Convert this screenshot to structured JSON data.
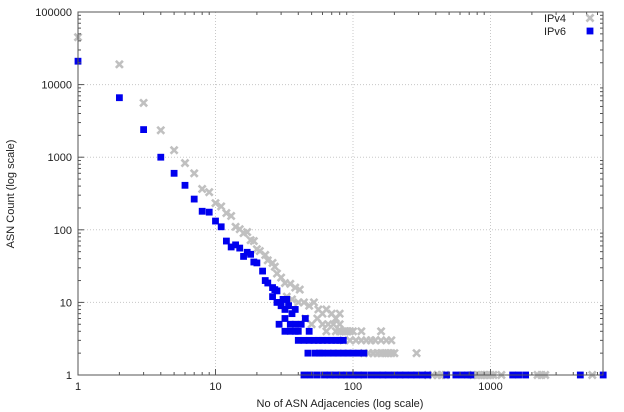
{
  "chart_data": {
    "type": "scatter",
    "title": "",
    "xlabel": "No of ASN Adjacencies (log scale)",
    "ylabel": "ASN Count (log scale)",
    "xscale": "log",
    "yscale": "log",
    "xlim": [
      1,
      6600
    ],
    "ylim": [
      1,
      100000
    ],
    "x_ticks": [
      "1",
      "10",
      "100",
      "1000"
    ],
    "y_ticks": [
      "1",
      "10",
      "100",
      "1000",
      "10000",
      "100000"
    ],
    "grid": "dotted major gridlines",
    "legend_position": "top-right",
    "legend": [
      {
        "name": "IPv4",
        "color": "#c0c0c0",
        "marker": "x"
      },
      {
        "name": "IPv6",
        "color": "#0000ee",
        "marker": "square"
      }
    ],
    "series": [
      {
        "name": "IPv4",
        "color": "#c0c0c0",
        "marker": "x",
        "points": [
          [
            1,
            45000
          ],
          [
            2,
            19000
          ],
          [
            3,
            5600
          ],
          [
            4,
            2350
          ],
          [
            5,
            1250
          ],
          [
            6,
            830
          ],
          [
            7,
            600
          ],
          [
            8,
            365
          ],
          [
            9,
            330
          ],
          [
            10,
            233
          ],
          [
            11,
            210
          ],
          [
            12,
            170
          ],
          [
            13,
            155
          ],
          [
            14,
            110
          ],
          [
            15,
            102
          ],
          [
            16,
            90
          ],
          [
            17,
            93
          ],
          [
            18,
            72
          ],
          [
            19,
            70
          ],
          [
            20,
            54
          ],
          [
            21,
            51
          ],
          [
            23,
            45
          ],
          [
            24,
            38
          ],
          [
            26,
            35
          ],
          [
            27,
            31
          ],
          [
            28,
            25
          ],
          [
            30,
            22
          ],
          [
            32,
            18.5
          ],
          [
            35,
            18
          ],
          [
            38,
            16
          ],
          [
            41,
            15
          ],
          [
            33,
            12
          ],
          [
            36,
            11
          ],
          [
            40,
            10
          ],
          [
            44,
            10
          ],
          [
            48,
            9
          ],
          [
            52,
            10
          ],
          [
            56,
            8
          ],
          [
            60,
            7
          ],
          [
            64,
            8
          ],
          [
            70,
            7
          ],
          [
            75,
            6
          ],
          [
            80,
            7
          ],
          [
            45,
            6
          ],
          [
            50,
            5
          ],
          [
            55,
            6
          ],
          [
            60,
            5
          ],
          [
            66,
            5
          ],
          [
            72,
            5
          ],
          [
            80,
            5
          ],
          [
            88,
            4
          ],
          [
            64,
            4
          ],
          [
            75,
            4
          ],
          [
            80,
            4
          ],
          [
            85,
            4
          ],
          [
            90,
            4
          ],
          [
            95,
            4
          ],
          [
            100,
            4
          ],
          [
            115,
            4
          ],
          [
            160,
            4
          ],
          [
            85,
            3
          ],
          [
            95,
            3
          ],
          [
            105,
            3
          ],
          [
            115,
            3
          ],
          [
            125,
            3
          ],
          [
            135,
            3
          ],
          [
            145,
            3
          ],
          [
            160,
            3
          ],
          [
            175,
            3
          ],
          [
            190,
            3
          ],
          [
            120,
            2
          ],
          [
            130,
            2
          ],
          [
            140,
            2
          ],
          [
            150,
            2
          ],
          [
            160,
            2
          ],
          [
            170,
            2
          ],
          [
            180,
            2
          ],
          [
            190,
            2
          ],
          [
            200,
            2
          ],
          [
            290,
            2
          ],
          [
            350,
            1
          ],
          [
            380,
            1
          ],
          [
            410,
            1
          ],
          [
            440,
            1
          ],
          [
            470,
            1
          ],
          [
            750,
            1
          ],
          [
            800,
            1
          ],
          [
            850,
            1
          ],
          [
            900,
            1
          ],
          [
            950,
            1
          ],
          [
            1000,
            1
          ],
          [
            1050,
            1
          ],
          [
            1200,
            1
          ],
          [
            2200,
            1
          ],
          [
            2350,
            1
          ],
          [
            2500,
            1
          ],
          [
            5500,
            1
          ]
        ]
      },
      {
        "name": "IPv6",
        "color": "#0000ee",
        "marker": "square",
        "points": [
          [
            1,
            21000
          ],
          [
            2,
            6600
          ],
          [
            3,
            2400
          ],
          [
            4,
            1000
          ],
          [
            5,
            600
          ],
          [
            6,
            410
          ],
          [
            7,
            265
          ],
          [
            8,
            180
          ],
          [
            9,
            175
          ],
          [
            10,
            132
          ],
          [
            11,
            110
          ],
          [
            12,
            70
          ],
          [
            13,
            58
          ],
          [
            14,
            62
          ],
          [
            15,
            56
          ],
          [
            16,
            43
          ],
          [
            17,
            49
          ],
          [
            18,
            46
          ],
          [
            19,
            36
          ],
          [
            20,
            35
          ],
          [
            22,
            27
          ],
          [
            23,
            20
          ],
          [
            24,
            18.5
          ],
          [
            26,
            16
          ],
          [
            27,
            15
          ],
          [
            28,
            14.4
          ],
          [
            31,
            11
          ],
          [
            33,
            11
          ],
          [
            26,
            12
          ],
          [
            28,
            10
          ],
          [
            30,
            9
          ],
          [
            32,
            8
          ],
          [
            34,
            9
          ],
          [
            36,
            7
          ],
          [
            38,
            8
          ],
          [
            29,
            5
          ],
          [
            32,
            6
          ],
          [
            35,
            5
          ],
          [
            38,
            5
          ],
          [
            42,
            5
          ],
          [
            45,
            6
          ],
          [
            32,
            4
          ],
          [
            35,
            4
          ],
          [
            38,
            4
          ],
          [
            40,
            4
          ],
          [
            48,
            4
          ],
          [
            40,
            3
          ],
          [
            44,
            3
          ],
          [
            48,
            3
          ],
          [
            52,
            3
          ],
          [
            56,
            3
          ],
          [
            60,
            3
          ],
          [
            65,
            3
          ],
          [
            70,
            3
          ],
          [
            75,
            3
          ],
          [
            80,
            3
          ],
          [
            85,
            3
          ],
          [
            47,
            2
          ],
          [
            53,
            2
          ],
          [
            57,
            2
          ],
          [
            60,
            2
          ],
          [
            66,
            2
          ],
          [
            72,
            2
          ],
          [
            78,
            2
          ],
          [
            85,
            2
          ],
          [
            92,
            2
          ],
          [
            100,
            2
          ],
          [
            110,
            2
          ],
          [
            120,
            2
          ],
          [
            44,
            1
          ],
          [
            49,
            1
          ],
          [
            55,
            1
          ],
          [
            62,
            1
          ],
          [
            68,
            1
          ],
          [
            75,
            1
          ],
          [
            82,
            1
          ],
          [
            90,
            1
          ],
          [
            100,
            1
          ],
          [
            110,
            1
          ],
          [
            120,
            1
          ],
          [
            135,
            1
          ],
          [
            150,
            1
          ],
          [
            165,
            1
          ],
          [
            180,
            1
          ],
          [
            200,
            1
          ],
          [
            220,
            1
          ],
          [
            240,
            1
          ],
          [
            265,
            1
          ],
          [
            290,
            1
          ],
          [
            320,
            1
          ],
          [
            350,
            1
          ],
          [
            480,
            1
          ],
          [
            560,
            1
          ],
          [
            620,
            1
          ],
          [
            680,
            1
          ],
          [
            720,
            1
          ],
          [
            1450,
            1
          ],
          [
            1600,
            1
          ],
          [
            1800,
            1
          ],
          [
            4500,
            1
          ],
          [
            6600,
            1
          ]
        ]
      }
    ]
  }
}
